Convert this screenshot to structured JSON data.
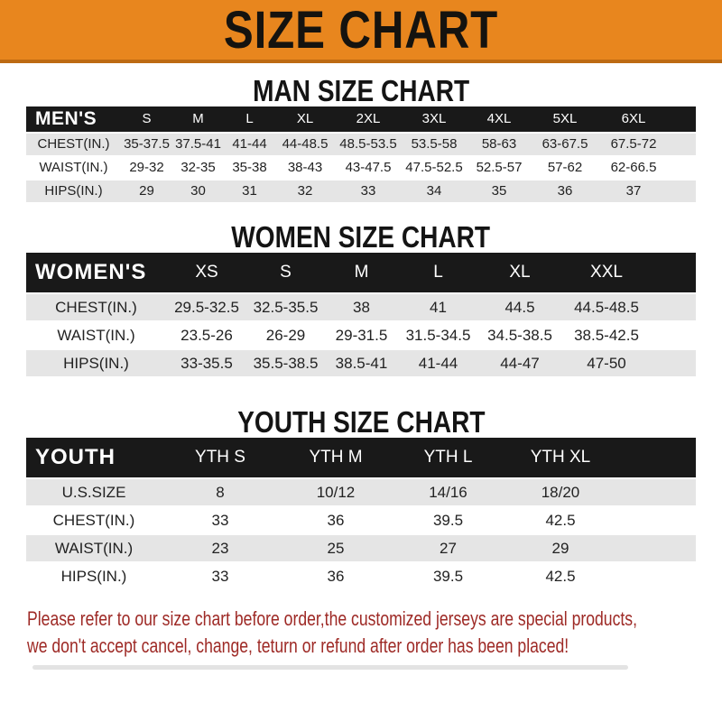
{
  "banner": {
    "title": "SIZE CHART",
    "bg_color": "#E8861E",
    "border_color": "#BD6A12"
  },
  "sections": {
    "men_heading": "MAN SIZE CHART",
    "women_heading": "WOMEN SIZE CHART",
    "youth_heading": "YOUTH SIZE CHART"
  },
  "tables": {
    "men": {
      "header_label": "MEN'S",
      "columns": [
        "S",
        "M",
        "L",
        "XL",
        "2XL",
        "3XL",
        "4XL",
        "5XL",
        "6XL"
      ],
      "rows": [
        {
          "label": "CHEST(IN.)",
          "values": [
            "35-37.5",
            "37.5-41",
            "41-44",
            "44-48.5",
            "48.5-53.5",
            "53.5-58",
            "58-63",
            "63-67.5",
            "67.5-72"
          ]
        },
        {
          "label": "WAIST(IN.)",
          "values": [
            "29-32",
            "32-35",
            "35-38",
            "38-43",
            "43-47.5",
            "47.5-52.5",
            "52.5-57",
            "57-62",
            "62-66.5"
          ]
        },
        {
          "label": "HIPS(IN.)",
          "values": [
            "29",
            "30",
            "31",
            "32",
            "33",
            "34",
            "35",
            "36",
            "37"
          ]
        }
      ]
    },
    "women": {
      "header_label": "WOMEN'S",
      "columns": [
        "XS",
        "S",
        "M",
        "L",
        "XL",
        "XXL"
      ],
      "rows": [
        {
          "label": "CHEST(IN.)",
          "values": [
            "29.5-32.5",
            "32.5-35.5",
            "38",
            "41",
            "44.5",
            "44.5-48.5"
          ]
        },
        {
          "label": "WAIST(IN.)",
          "values": [
            "23.5-26",
            "26-29",
            "29-31.5",
            "31.5-34.5",
            "34.5-38.5",
            "38.5-42.5"
          ]
        },
        {
          "label": "HIPS(IN.)",
          "values": [
            "33-35.5",
            "35.5-38.5",
            "38.5-41",
            "41-44",
            "44-47",
            "47-50"
          ]
        }
      ]
    },
    "youth": {
      "header_label": "YOUTH",
      "columns": [
        "YTH S",
        "YTH M",
        "YTH L",
        "YTH XL"
      ],
      "rows": [
        {
          "label": "U.S.SIZE",
          "values": [
            "8",
            "10/12",
            "14/16",
            "18/20"
          ]
        },
        {
          "label": "CHEST(IN.)",
          "values": [
            "33",
            "36",
            "39.5",
            "42.5"
          ]
        },
        {
          "label": "WAIST(IN.)",
          "values": [
            "23",
            "25",
            "27",
            "29"
          ]
        },
        {
          "label": "HIPS(IN.)",
          "values": [
            "33",
            "36",
            "39.5",
            "42.5"
          ]
        }
      ]
    }
  },
  "footer": {
    "line1": "Please refer to our size chart before order,the customized jerseys are special products,",
    "line2": "we don't accept cancel, change, teturn or refund after order has been placed!",
    "text_color": "#9E2A26"
  },
  "colors": {
    "header_bar": "#191919",
    "row_alt_gray": "#E5E5E5"
  }
}
